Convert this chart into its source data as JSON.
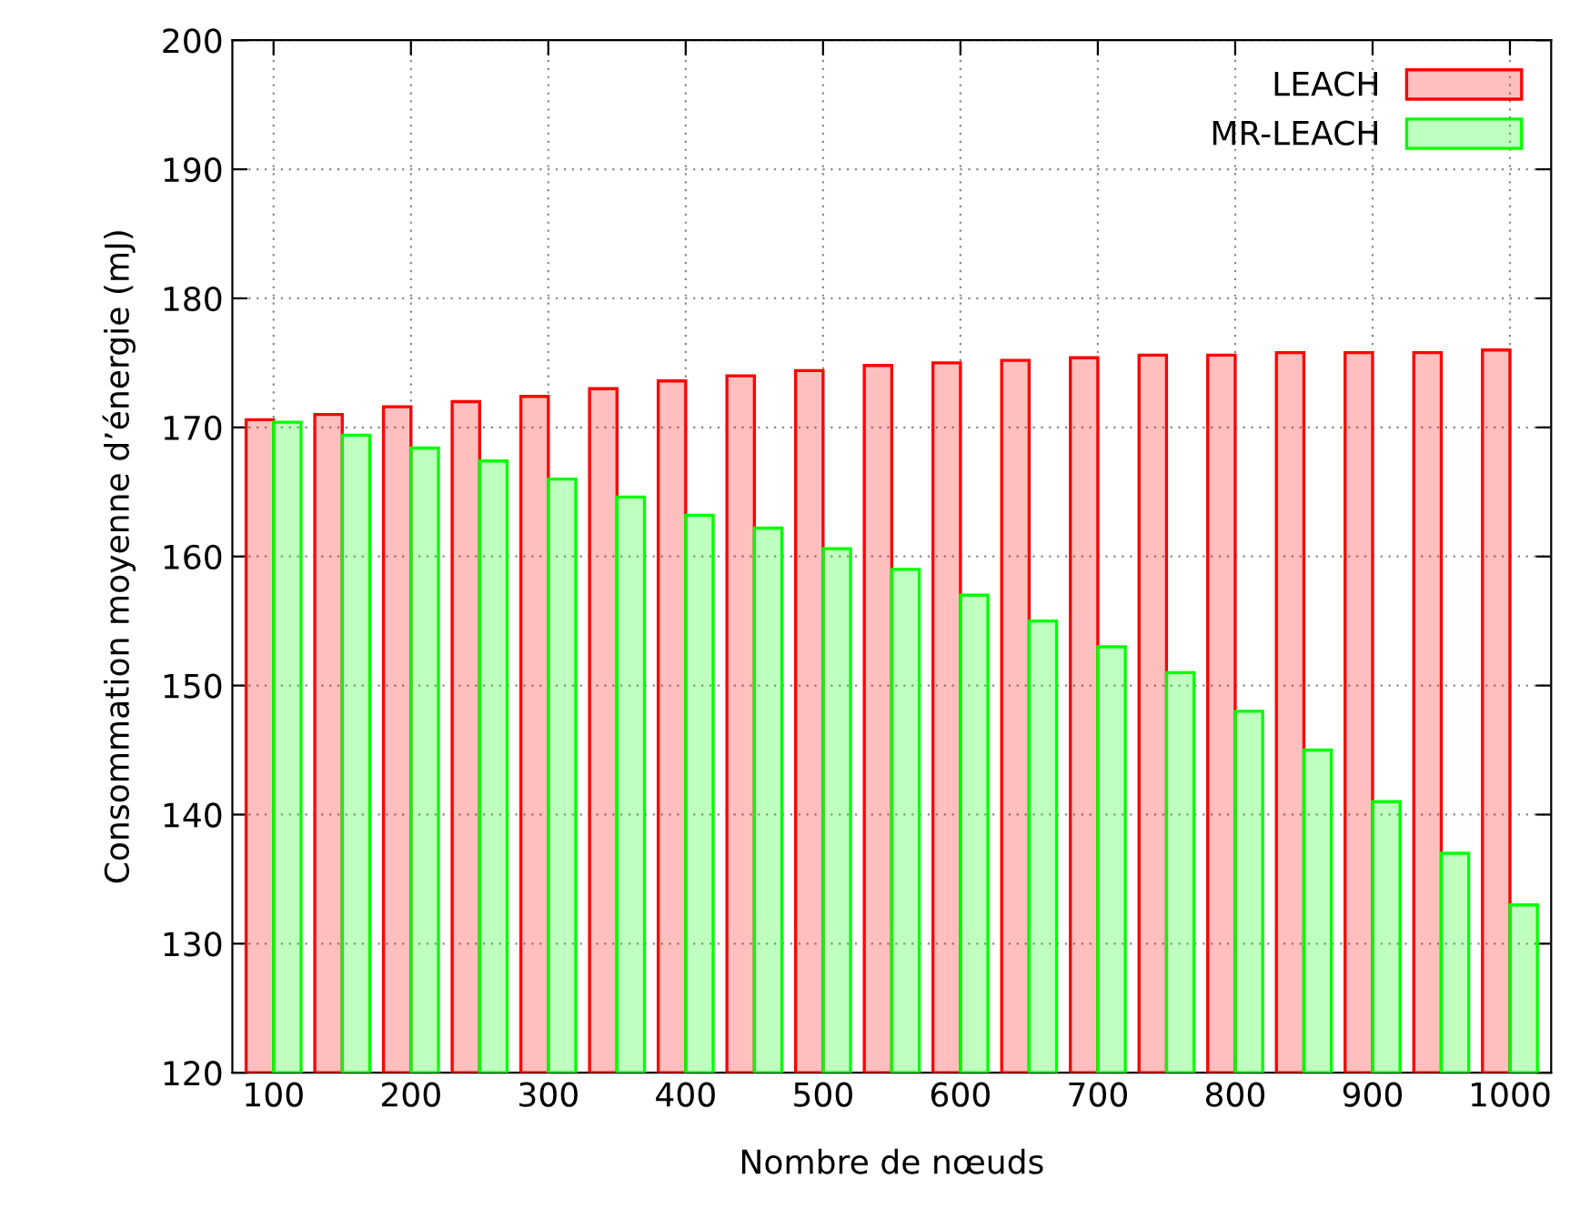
{
  "chart_data": {
    "type": "bar",
    "xlabel": "Nombre de nœuds",
    "ylabel": "Consommation moyenne d’énergie (mJ)",
    "categories": [
      "100",
      null,
      "200",
      null,
      "300",
      null,
      "400",
      null,
      "500",
      null,
      "600",
      null,
      "700",
      null,
      "800",
      null,
      "900",
      null,
      "1000"
    ],
    "series": [
      {
        "name": "LEACH",
        "color": "#ff0000",
        "values": [
          170.6,
          171,
          171.6,
          172,
          172.4,
          173,
          173.6,
          174,
          174.4,
          174.8,
          175,
          175.2,
          175.4,
          175.6,
          175.6,
          175.8,
          175.8,
          175.8,
          176
        ]
      },
      {
        "name": "MR-LEACH",
        "color": "#00ff00",
        "values": [
          170.4,
          169.4,
          168.4,
          167.4,
          166,
          164.6,
          163.2,
          162.2,
          160.6,
          159,
          157,
          155,
          153,
          151,
          148,
          145,
          141,
          137,
          133
        ]
      }
    ],
    "ylim": [
      120,
      200
    ],
    "yticks": [
      120,
      130,
      140,
      150,
      160,
      170,
      180,
      190,
      200
    ],
    "grid": true,
    "legend": "top right"
  }
}
